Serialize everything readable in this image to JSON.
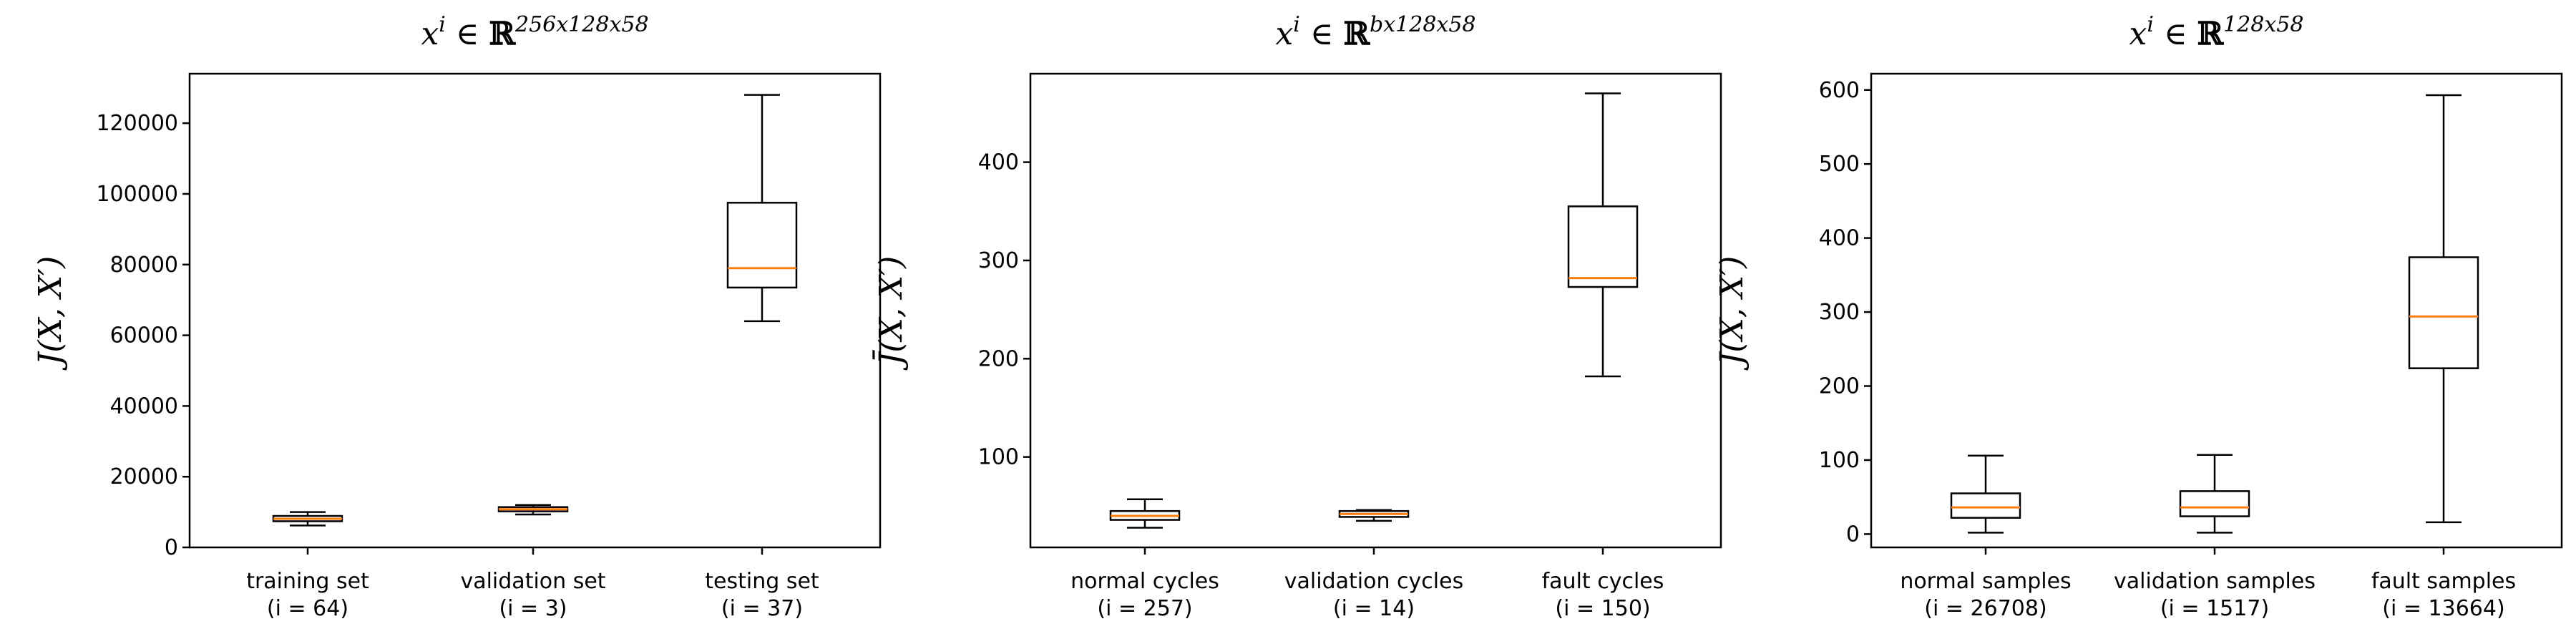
{
  "chart_data": [
    {
      "type": "box",
      "title": {
        "base": "x",
        "sup_i": "i",
        "in": " ∈ ",
        "field": "ℝ",
        "dims": "256x128x58"
      },
      "ylabel": "J(X, X′)",
      "ylim": [
        0,
        134000
      ],
      "yticks": [
        0,
        20000,
        40000,
        60000,
        80000,
        100000,
        120000
      ],
      "ytick_labels": [
        "0",
        "20000",
        "40000",
        "60000",
        "80000",
        "100000",
        "120000"
      ],
      "categories": [
        {
          "label": "training set",
          "sublabel": "(i = 64)"
        },
        {
          "label": "validation set",
          "sublabel": "(i = 3)"
        },
        {
          "label": "testing set",
          "sublabel": "(i = 37)"
        }
      ],
      "boxes": [
        {
          "whislo": 6200,
          "q1": 7400,
          "med": 8100,
          "q3": 8900,
          "whishi": 10000
        },
        {
          "whislo": 9300,
          "q1": 10200,
          "med": 10800,
          "q3": 11400,
          "whishi": 12000
        },
        {
          "whislo": 64000,
          "q1": 73500,
          "med": 79000,
          "q3": 97500,
          "whishi": 128000
        }
      ]
    },
    {
      "type": "box",
      "title": {
        "base": "x",
        "sup_i": "i",
        "in": " ∈ ",
        "field": "ℝ",
        "dims": "bx128x58"
      },
      "ylabel": "J̄(X, X′)",
      "ylim": [
        8,
        490
      ],
      "yticks": [
        100,
        200,
        300,
        400
      ],
      "ytick_labels": [
        "100",
        "200",
        "300",
        "400"
      ],
      "categories": [
        {
          "label": "normal cycles",
          "sublabel": "(i = 257)"
        },
        {
          "label": "validation cycles",
          "sublabel": "(i = 14)"
        },
        {
          "label": "fault cycles",
          "sublabel": "(i = 150)"
        }
      ],
      "boxes": [
        {
          "whislo": 28,
          "q1": 36,
          "med": 40,
          "q3": 45,
          "whishi": 57
        },
        {
          "whislo": 35,
          "q1": 39,
          "med": 42,
          "q3": 45,
          "whishi": 46
        },
        {
          "whislo": 182,
          "q1": 273,
          "med": 282,
          "q3": 355,
          "whishi": 470
        }
      ]
    },
    {
      "type": "box",
      "title": {
        "base": "x",
        "sup_i": "i",
        "in": " ∈ ",
        "field": "ℝ",
        "dims": "128x58"
      },
      "ylabel": "J(X, X′)",
      "ylim": [
        -18,
        622
      ],
      "yticks": [
        0,
        100,
        200,
        300,
        400,
        500,
        600
      ],
      "ytick_labels": [
        "0",
        "100",
        "200",
        "300",
        "400",
        "500",
        "600"
      ],
      "categories": [
        {
          "label": "normal samples",
          "sublabel": "(i = 26708)"
        },
        {
          "label": "validation samples",
          "sublabel": "(i = 1517)"
        },
        {
          "label": "fault samples",
          "sublabel": "(i = 13664)"
        }
      ],
      "boxes": [
        {
          "whislo": 2,
          "q1": 22,
          "med": 36,
          "q3": 55,
          "whishi": 106
        },
        {
          "whislo": 2,
          "q1": 24,
          "med": 36,
          "q3": 58,
          "whishi": 107
        },
        {
          "whislo": 16,
          "q1": 224,
          "med": 294,
          "q3": 374,
          "whishi": 593
        }
      ]
    }
  ],
  "colors": {
    "box": "#000000",
    "median": "#ff7f0e",
    "background": "#ffffff"
  }
}
